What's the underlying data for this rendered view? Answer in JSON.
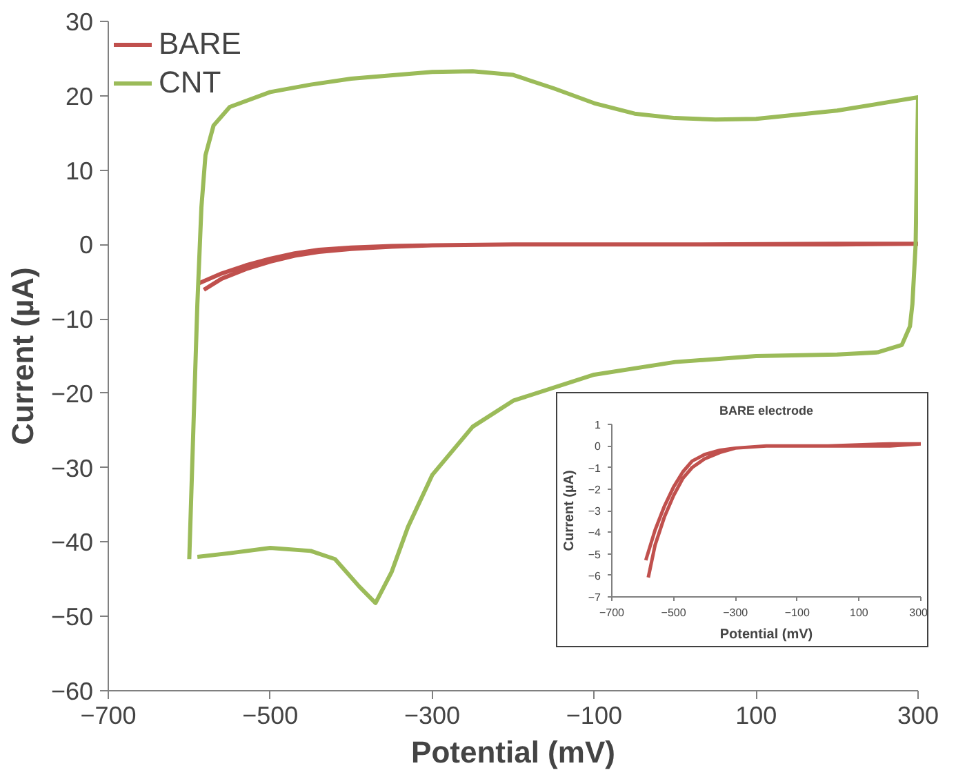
{
  "chart_data": [
    {
      "type": "line",
      "xlabel": "Potential (mV)",
      "ylabel": "Current (µA)",
      "xlim": [
        -700,
        300
      ],
      "xticks": [
        -700,
        -500,
        -300,
        -100,
        100,
        300
      ],
      "ylim": [
        -60,
        30
      ],
      "yticks": [
        -60,
        -50,
        -40,
        -30,
        -20,
        -10,
        0,
        10,
        20,
        30
      ],
      "legend": "top left",
      "grid": false,
      "marker": "none",
      "line_style": "solid",
      "series": [
        {
          "name": "BARE",
          "color": "#c0504d",
          "x": [
            -590,
            -560,
            -530,
            -500,
            -470,
            -440,
            -400,
            -350,
            -300,
            -200,
            0,
            200,
            300,
            300,
            200,
            0,
            -200,
            -300,
            -350,
            -400,
            -440,
            -470,
            -500,
            -530,
            -560,
            -582
          ],
          "values": [
            -5.3,
            -3.9,
            -2.8,
            -1.9,
            -1.2,
            -0.7,
            -0.4,
            -0.2,
            -0.1,
            0,
            0,
            0.1,
            0.1,
            0.1,
            0,
            0,
            0,
            -0.1,
            -0.3,
            -0.6,
            -1,
            -1.5,
            -2.3,
            -3.3,
            -4.6,
            -6.1
          ]
        },
        {
          "name": "CNT",
          "color": "#9bbb59",
          "x": [
            -600,
            -595,
            -590,
            -585,
            -580,
            -570,
            -550,
            -500,
            -450,
            -400,
            -300,
            -250,
            -200,
            -150,
            -100,
            -50,
            0,
            50,
            100,
            200,
            300,
            297,
            293,
            290,
            280,
            250,
            200,
            100,
            0,
            -100,
            -200,
            -250,
            -300,
            -330,
            -350,
            -370,
            -390,
            -420,
            -450,
            -500,
            -550,
            -590
          ],
          "values": [
            -42.3,
            -25,
            -8,
            5,
            12,
            16,
            18.5,
            20.5,
            21.5,
            22.3,
            23.2,
            23.3,
            22.8,
            21,
            19,
            17.6,
            17,
            16.8,
            16.9,
            18,
            19.8,
            0,
            -8,
            -11,
            -13.5,
            -14.5,
            -14.8,
            -15,
            -15.8,
            -17.5,
            -21,
            -24.5,
            -31,
            -38,
            -44,
            -48.2,
            -46,
            -42.3,
            -41.2,
            -40.8,
            -41.5,
            -42
          ]
        }
      ]
    },
    {
      "type": "line",
      "title": "BARE electrode",
      "xlabel": "Potential (mV)",
      "ylabel": "Current (µA)",
      "xlim": [
        -700,
        300
      ],
      "xticks": [
        -700,
        -500,
        -300,
        -100,
        100,
        300
      ],
      "ylim": [
        -7,
        1
      ],
      "yticks": [
        -7,
        -6,
        -5,
        -4,
        -3,
        -2,
        -1,
        0,
        1
      ],
      "grid": false,
      "marker": "none",
      "line_style": "solid",
      "series": [
        {
          "color": "#c0504d",
          "x": [
            -590,
            -560,
            -530,
            -500,
            -470,
            -440,
            -400,
            -350,
            -300,
            -200,
            0,
            200,
            300,
            300,
            200,
            0,
            -200,
            -300,
            -350,
            -400,
            -440,
            -470,
            -500,
            -530,
            -560,
            -582
          ],
          "values": [
            -5.3,
            -3.9,
            -2.8,
            -1.9,
            -1.2,
            -0.7,
            -0.4,
            -0.2,
            -0.1,
            0,
            0,
            0.1,
            0.1,
            0.1,
            0,
            0,
            0,
            -0.1,
            -0.3,
            -0.6,
            -1,
            -1.5,
            -2.3,
            -3.3,
            -4.6,
            -6.1
          ]
        }
      ]
    }
  ]
}
